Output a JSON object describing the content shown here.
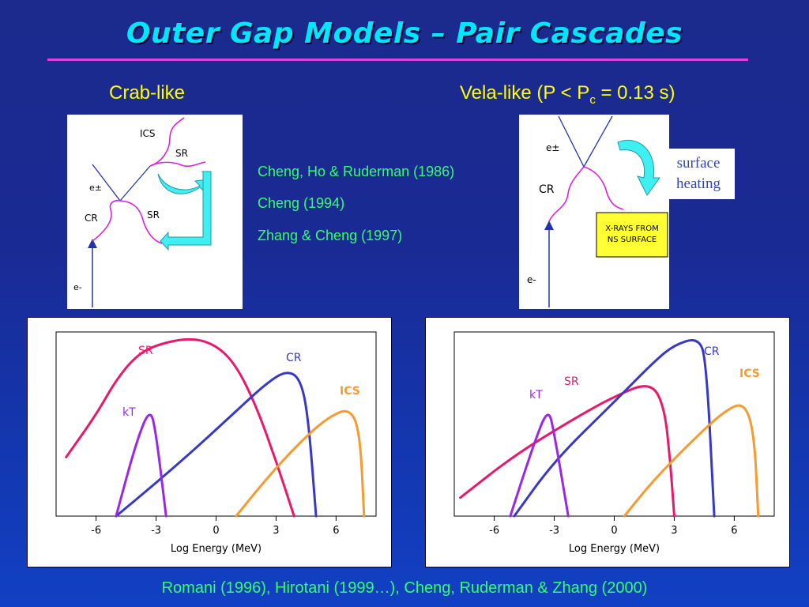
{
  "title": "Outer Gap Models – Pair Cascades",
  "crab": {
    "heading": "Crab-like",
    "labels": {
      "ics": "ICS",
      "sr_top": "SR",
      "epm": "e±",
      "cr": "CR",
      "sr_bottom": "SR",
      "em": "e-"
    }
  },
  "vela": {
    "heading_main": "Vela-like (P < P",
    "heading_sub": "c",
    "heading_end": " = 0.13 s)",
    "labels": {
      "epm": "e±",
      "cr": "CR",
      "em": "e-"
    },
    "surface_heating": [
      "surface",
      "heating"
    ],
    "xray_box": [
      "X-RAYS FROM",
      "NS SURFACE"
    ]
  },
  "references": [
    "Cheng, Ho & Ruderman (1986)",
    "Cheng (1994)",
    "Zhang & Cheng (1997)"
  ],
  "footer": "Romani (1996), Hirotani  (1999…), Cheng, Ruderman & Zhang (2000)",
  "colors": {
    "sr": "#e8186a",
    "cr": "#3838c8",
    "ics": "#f79a30",
    "kt": "#9b27e6",
    "arrow": "#40f0f0"
  },
  "chart_data": [
    {
      "type": "line",
      "xlabel": "Log Energy (MeV)",
      "x_ticks": [
        "-6",
        "-3",
        "0",
        "3",
        "6"
      ],
      "series": [
        {
          "name": "SR",
          "points": [
            [
              -7.5,
              0.32
            ],
            [
              -6,
              0.55
            ],
            [
              -5,
              0.74
            ],
            [
              -4,
              0.87
            ],
            [
              -3,
              0.93
            ],
            [
              -1.3,
              0.97
            ],
            [
              0,
              0.93
            ],
            [
              1,
              0.82
            ],
            [
              2,
              0.6
            ],
            [
              3,
              0.3
            ],
            [
              3.9,
              0.0
            ]
          ]
        },
        {
          "name": "CR",
          "points": [
            [
              -5,
              0.0
            ],
            [
              -3,
              0.18
            ],
            [
              -1,
              0.37
            ],
            [
              1,
              0.57
            ],
            [
              2.5,
              0.72
            ],
            [
              3.5,
              0.79
            ],
            [
              4.2,
              0.75
            ],
            [
              4.6,
              0.55
            ],
            [
              5,
              0.0
            ]
          ]
        },
        {
          "name": "ICS",
          "points": [
            [
              1,
              0.0
            ],
            [
              2.5,
              0.2
            ],
            [
              4,
              0.38
            ],
            [
              5.5,
              0.53
            ],
            [
              6.7,
              0.59
            ],
            [
              7.2,
              0.45
            ],
            [
              7.4,
              0.0
            ]
          ]
        },
        {
          "name": "kT",
          "points": [
            [
              -5,
              0.0
            ],
            [
              -4,
              0.4
            ],
            [
              -3.3,
              0.59
            ],
            [
              -3,
              0.45
            ],
            [
              -2.5,
              0.0
            ]
          ]
        }
      ]
    },
    {
      "type": "line",
      "xlabel": "Log Energy (MeV)",
      "x_ticks": [
        "-6",
        "-3",
        "0",
        "3",
        "6"
      ],
      "series": [
        {
          "name": "SR",
          "points": [
            [
              -7.7,
              0.1
            ],
            [
              -5,
              0.33
            ],
            [
              -2,
              0.53
            ],
            [
              0,
              0.65
            ],
            [
              1.8,
              0.73
            ],
            [
              2.5,
              0.6
            ],
            [
              2.8,
              0.3
            ],
            [
              3,
              0.0
            ]
          ]
        },
        {
          "name": "CR",
          "points": [
            [
              -5,
              0.0
            ],
            [
              -3,
              0.3
            ],
            [
              0,
              0.62
            ],
            [
              2,
              0.84
            ],
            [
              3,
              0.93
            ],
            [
              4.2,
              0.97
            ],
            [
              4.6,
              0.85
            ],
            [
              5,
              0.0
            ]
          ]
        },
        {
          "name": "ICS",
          "points": [
            [
              0.5,
              0.0
            ],
            [
              2,
              0.2
            ],
            [
              4,
              0.42
            ],
            [
              5.5,
              0.57
            ],
            [
              6.5,
              0.62
            ],
            [
              7,
              0.45
            ],
            [
              7.2,
              0.0
            ]
          ]
        },
        {
          "name": "kT",
          "points": [
            [
              -5.2,
              0.0
            ],
            [
              -4,
              0.4
            ],
            [
              -3.3,
              0.59
            ],
            [
              -3,
              0.45
            ],
            [
              -2.3,
              0.0
            ]
          ]
        }
      ]
    }
  ]
}
